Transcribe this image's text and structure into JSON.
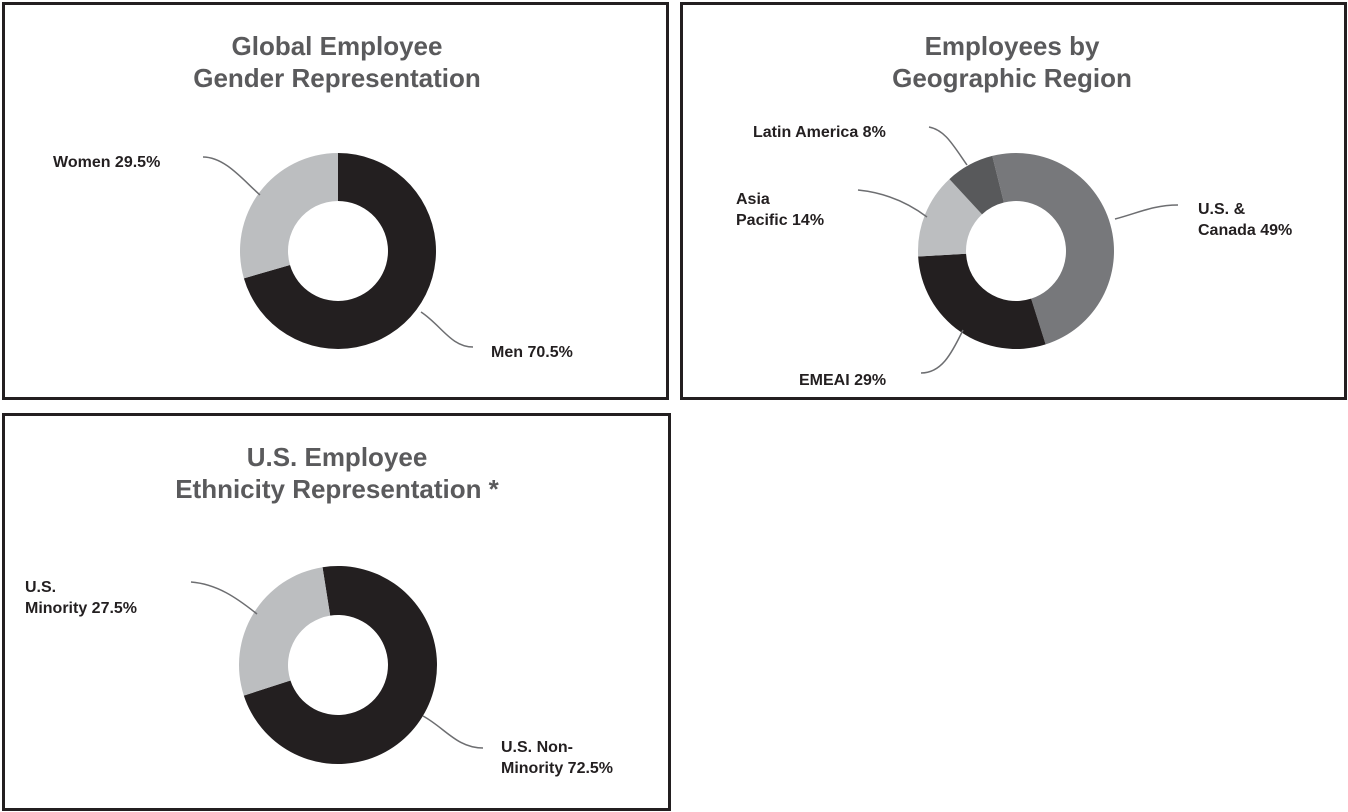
{
  "colors": {
    "dark": "#231f20",
    "mid": "#77787b",
    "light": "#bcbec0",
    "charcoal": "#58595b",
    "title": "#5a5a5c"
  },
  "chart_data": [
    {
      "type": "pie",
      "title": [
        "Global Employee",
        "Gender Representation"
      ],
      "categories": [
        "Men",
        "Women"
      ],
      "values": [
        70.5,
        29.5
      ],
      "labels": [
        [
          "Men 70.5%"
        ],
        [
          "Women 29.5%"
        ]
      ],
      "legend": "none"
    },
    {
      "type": "pie",
      "title": [
        "Employees by",
        "Geographic Region"
      ],
      "categories": [
        "U.S. & Canada",
        "EMEAI",
        "Asia Pacific",
        "Latin America"
      ],
      "values": [
        49,
        29,
        14,
        8
      ],
      "labels": [
        [
          "U.S. &",
          "Canada 49%"
        ],
        [
          "EMEAI 29%"
        ],
        [
          "Asia",
          "Pacific 14%"
        ],
        [
          "Latin America 8%"
        ]
      ],
      "legend": "none"
    },
    {
      "type": "pie",
      "title": [
        "U.S. Employee",
        "Ethnicity Representation *"
      ],
      "categories": [
        "U.S. Non-Minority",
        "U.S. Minority"
      ],
      "values": [
        72.5,
        27.5
      ],
      "labels": [
        [
          "U.S. Non-",
          "Minority 72.5%"
        ],
        [
          "U.S.",
          "Minority 27.5%"
        ]
      ],
      "legend": "none"
    }
  ]
}
